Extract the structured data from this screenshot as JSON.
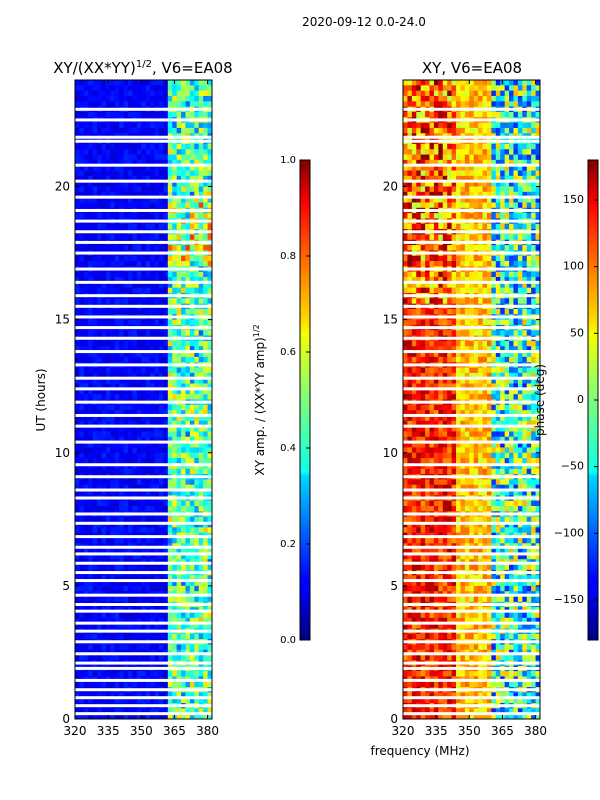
{
  "figure": {
    "suptitle": "2020-09-12 0.0-24.0",
    "shared_xlabel": "frequency (MHz)"
  },
  "chart_data": [
    {
      "type": "heatmap",
      "title": "XY/(XX*YY)",
      "title_exponent": "1/2",
      "title_suffix": ", V6=EA08",
      "xlabel": "frequency (MHz)",
      "ylabel": "UT (hours)",
      "xlim": [
        320,
        382
      ],
      "ylim": [
        0,
        24
      ],
      "xticks": [
        320,
        335,
        350,
        365,
        380
      ],
      "yticks": [
        0,
        5,
        10,
        15,
        20
      ],
      "cmap": "jet",
      "colorbar": {
        "label": "XY amp. / (XX*YY amp)",
        "label_exponent": "1/2",
        "range": [
          0.0,
          1.0
        ],
        "ticks": [
          "0.0",
          "0.2",
          "0.4",
          "0.6",
          "0.8",
          "1.0"
        ],
        "tick_values": [
          0.0,
          0.2,
          0.4,
          0.6,
          0.8,
          1.0
        ]
      },
      "blank_rows_ut": [
        0.2,
        0.5,
        0.8,
        1.1,
        1.45,
        1.9,
        2.1,
        2.45,
        2.9,
        3.3,
        3.6,
        4.05,
        4.3,
        4.65,
        5.2,
        5.5,
        5.85,
        6.2,
        6.45,
        6.85,
        7.35,
        7.7,
        8.3,
        8.6,
        9.1,
        9.55,
        10.4,
        11.0,
        11.4,
        11.9,
        12.4,
        12.8,
        13.3,
        13.8,
        14.3,
        14.7,
        15.1,
        15.5,
        15.9,
        16.4,
        16.9,
        17.5,
        17.9,
        18.3,
        18.7,
        19.1,
        19.6,
        20.2,
        20.8,
        21.7,
        21.85,
        22.5,
        22.9
      ],
      "summary": "Low amplitude (~0.05-0.15) below 362 MHz; elevated amplitude (~0.3-0.7) in 362-382 MHz band, strongest near 17-19 UT"
    },
    {
      "type": "heatmap",
      "title": "XY, V6=EA08",
      "xlabel": "frequency (MHz)",
      "xlim": [
        320,
        382
      ],
      "ylim": [
        0,
        24
      ],
      "xticks": [
        320,
        335,
        350,
        365,
        380
      ],
      "yticks": [
        0,
        5,
        10,
        15,
        20
      ],
      "cmap": "jet",
      "colorbar": {
        "label": "phase (deg)",
        "range": [
          -180,
          180
        ],
        "ticks": [
          "−150",
          "−100",
          "−50",
          "0",
          "50",
          "100",
          "150"
        ],
        "tick_values": [
          -150,
          -100,
          -50,
          0,
          50,
          100,
          150
        ]
      },
      "blank_rows_ut": [
        0.2,
        0.5,
        0.8,
        1.1,
        1.45,
        1.9,
        2.1,
        2.45,
        2.9,
        3.3,
        3.6,
        4.05,
        4.3,
        4.65,
        5.2,
        5.5,
        5.85,
        6.2,
        6.45,
        6.85,
        7.35,
        7.7,
        8.3,
        8.6,
        9.1,
        9.55,
        10.4,
        11.0,
        11.4,
        11.9,
        12.4,
        12.8,
        13.3,
        13.8,
        14.3,
        14.7,
        15.1,
        15.5,
        15.9,
        16.4,
        16.9,
        17.5,
        17.9,
        18.3,
        18.7,
        19.1,
        19.6,
        20.2,
        20.8,
        21.7,
        21.85,
        22.5,
        22.9
      ],
      "summary": "Phase varies across band: ~+120 to +180 deg below 345 MHz, ~+50 to +100 deg at 345-360 MHz, mixed/negative beyond 360 MHz"
    }
  ]
}
